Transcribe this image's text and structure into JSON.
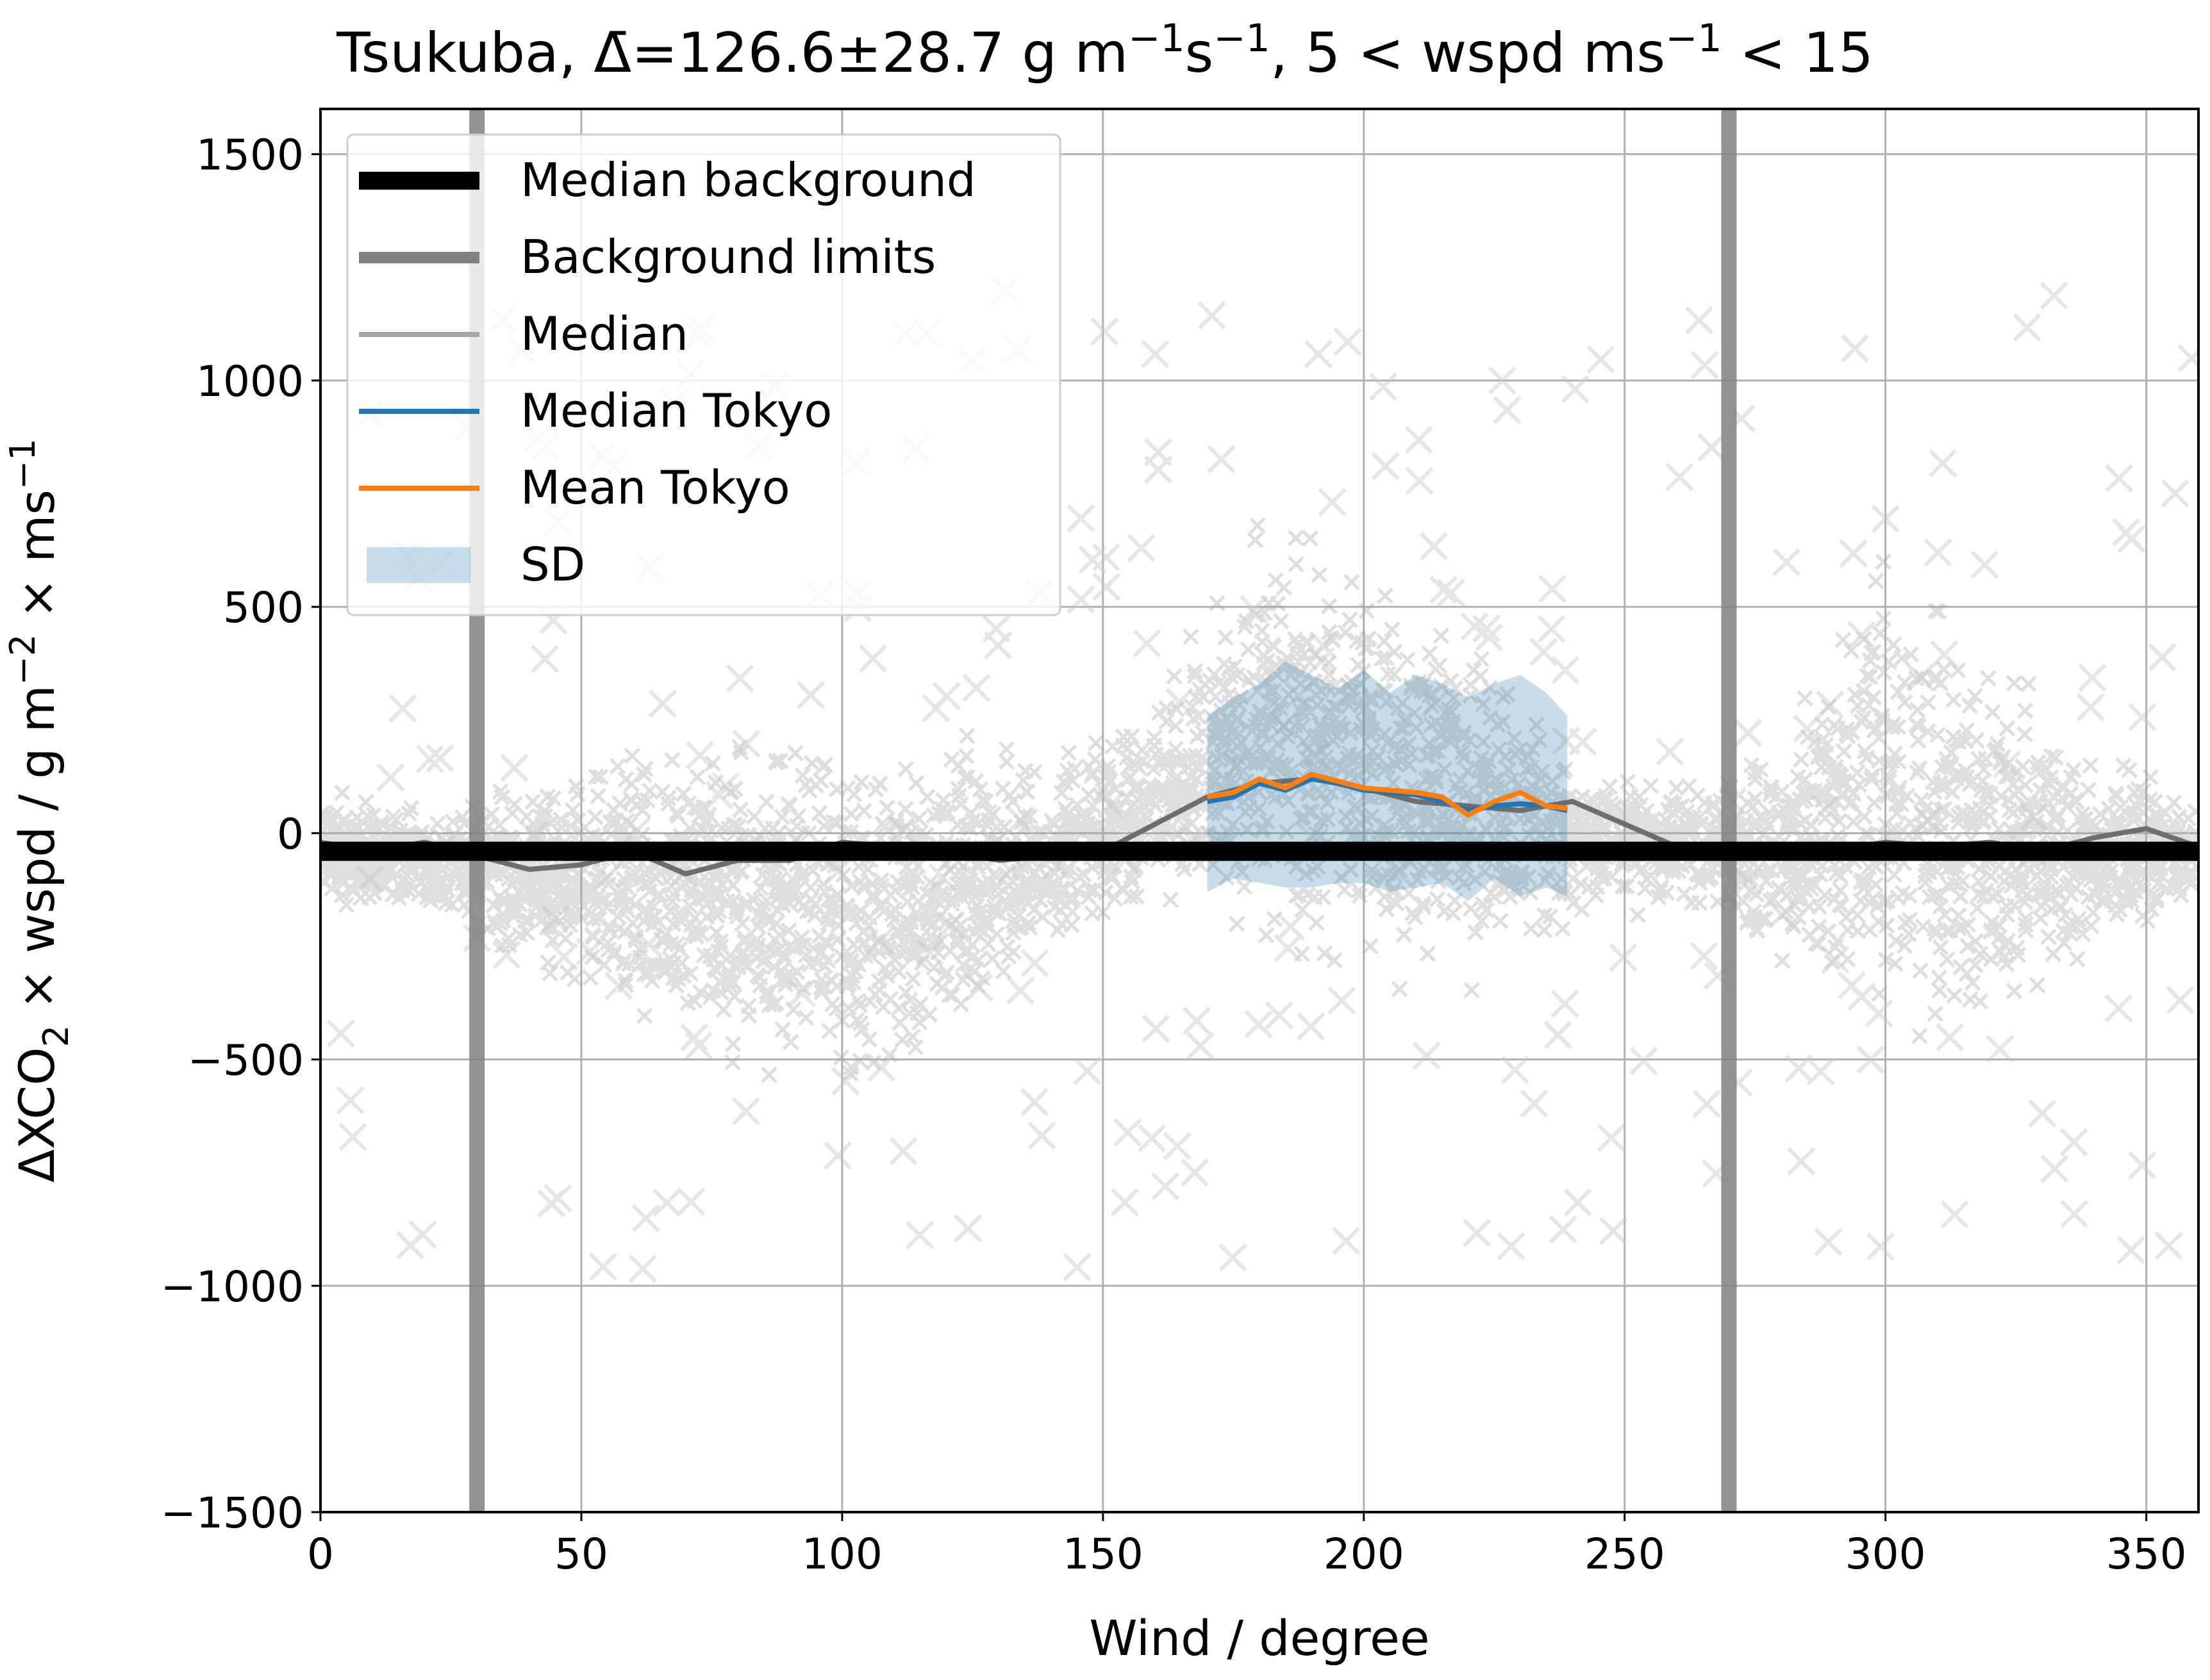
{
  "chart_data": {
    "type": "scatter",
    "title_main": "Tsukuba, Δ̄=126.6±28.7 g m",
    "title_exp1": "−1",
    "title_mid": "s",
    "title_exp2": "−1",
    "title_mid2": ", 5 < wspd ms",
    "title_exp3": "−1",
    "title_end": " < 15",
    "xlabel": "Wind / degree",
    "ylabel_a": "ΔXCO",
    "ylabel_sub": "2",
    "ylabel_b": " × wspd / g m",
    "ylabel_exp": "−2",
    "ylabel_c": " × ms",
    "ylabel_exp2": "−1",
    "xlim": [
      0,
      360
    ],
    "ylim": [
      -1500,
      1600
    ],
    "xticks": [
      0,
      50,
      100,
      150,
      200,
      250,
      300,
      350
    ],
    "yticks": [
      -1500,
      -1000,
      -500,
      0,
      500,
      1000,
      1500
    ],
    "ytick_labels": [
      "−1500",
      "−1000",
      "−500",
      "0",
      "500",
      "1000",
      "1500"
    ],
    "grid": true,
    "legend_position": "top-left",
    "legend": [
      {
        "label": "Median background",
        "color": "#000000",
        "kind": "thick-line"
      },
      {
        "label": "Background limits",
        "color": "#808080",
        "kind": "line"
      },
      {
        "label": "Median",
        "color": "#a6a6a6",
        "kind": "thin-line"
      },
      {
        "label": "Median Tokyo",
        "color": "#1f77b4",
        "kind": "thin-line"
      },
      {
        "label": "Mean Tokyo",
        "color": "#ff7f0e",
        "kind": "thin-line"
      },
      {
        "label": "SD",
        "color": "#1f77b4",
        "kind": "patch"
      }
    ],
    "median_background": -40,
    "background_limits": [
      30,
      270
    ],
    "scatter_color": "#a0a0a0",
    "scatter_envelope": {
      "x": [
        0,
        20,
        40,
        60,
        80,
        100,
        120,
        140,
        160,
        180,
        200,
        220,
        240,
        260,
        280,
        300,
        320,
        340,
        360
      ],
      "upper": [
        100,
        50,
        120,
        220,
        250,
        200,
        220,
        200,
        300,
        700,
        600,
        450,
        200,
        100,
        250,
        650,
        400,
        200,
        80
      ],
      "lower": [
        -150,
        -200,
        -300,
        -450,
        -550,
        -600,
        -520,
        -300,
        -150,
        -250,
        -300,
        -350,
        -200,
        -150,
        -300,
        -450,
        -450,
        -300,
        -160
      ]
    },
    "median_series": {
      "x": [
        0,
        10,
        20,
        30,
        40,
        50,
        60,
        70,
        80,
        90,
        100,
        110,
        120,
        130,
        140,
        150,
        160,
        170,
        180,
        190,
        200,
        210,
        220,
        230,
        240,
        250,
        260,
        270,
        280,
        290,
        300,
        310,
        320,
        330,
        340,
        350,
        360
      ],
      "y": [
        -20,
        -40,
        -20,
        -50,
        -80,
        -70,
        -40,
        -90,
        -60,
        -60,
        -20,
        -30,
        -40,
        -60,
        -50,
        -40,
        20,
        80,
        110,
        120,
        100,
        70,
        60,
        50,
        70,
        20,
        -30,
        -40,
        -50,
        -40,
        -20,
        -30,
        -20,
        -40,
        -10,
        10,
        -30
      ]
    },
    "tokyo_x": [
      170,
      175,
      180,
      185,
      190,
      195,
      200,
      205,
      210,
      215,
      220,
      225,
      230,
      235,
      239
    ],
    "median_tokyo": [
      70,
      80,
      110,
      95,
      120,
      110,
      95,
      90,
      85,
      70,
      50,
      60,
      65,
      60,
      50
    ],
    "mean_tokyo": [
      80,
      90,
      120,
      100,
      130,
      115,
      100,
      95,
      90,
      80,
      40,
      70,
      90,
      60,
      55
    ],
    "sd_upper": [
      260,
      300,
      330,
      380,
      350,
      320,
      360,
      310,
      350,
      330,
      300,
      330,
      350,
      310,
      260
    ],
    "sd_lower": [
      -130,
      -100,
      -110,
      -120,
      -120,
      -110,
      -110,
      -130,
      -120,
      -110,
      -150,
      -100,
      -140,
      -120,
      -140
    ]
  }
}
